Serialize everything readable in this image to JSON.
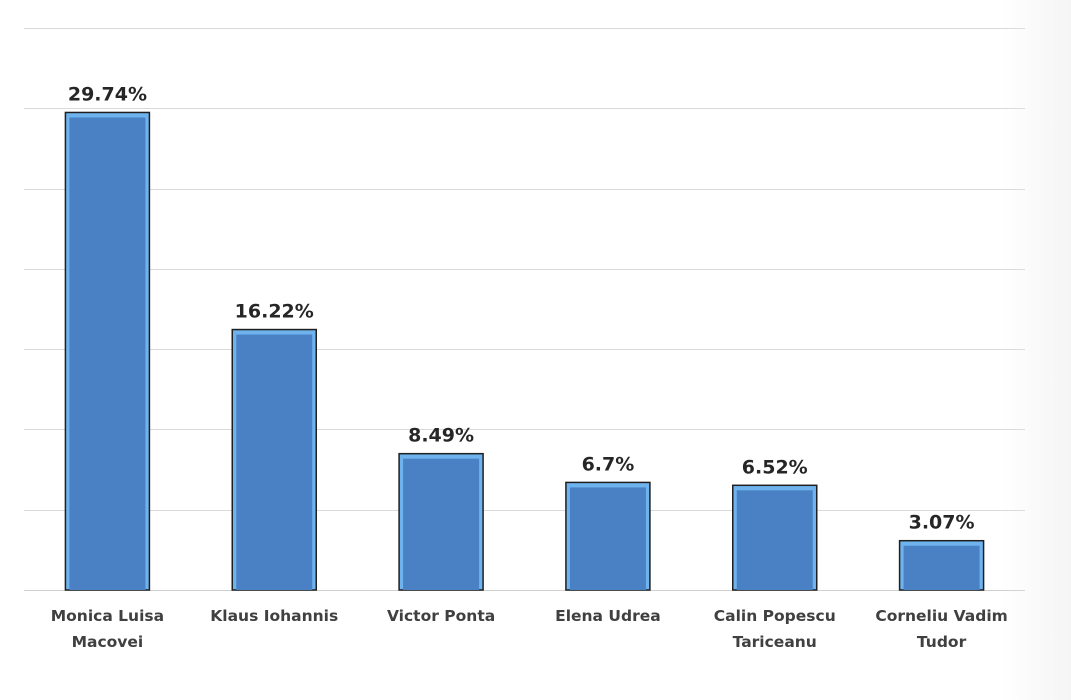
{
  "chart_data": {
    "type": "bar",
    "categories": [
      [
        "Monica Luisa",
        "Macovei"
      ],
      [
        "Klaus Iohannis"
      ],
      [
        "Victor Ponta"
      ],
      [
        "Elena Udrea"
      ],
      [
        "Calin Popescu",
        "Tariceanu"
      ],
      [
        "Corneliu Vadim",
        "Tudor"
      ]
    ],
    "values": [
      29.74,
      16.22,
      8.49,
      6.7,
      6.52,
      3.07
    ],
    "data_labels": [
      "29.74%",
      "16.22%",
      "8.49%",
      "6.7%",
      "6.52%",
      "3.07%"
    ],
    "ylim": [
      0,
      35
    ],
    "grid": true,
    "bar_color": "#4a81c4",
    "bar_border_color": "#6fb3ee"
  }
}
